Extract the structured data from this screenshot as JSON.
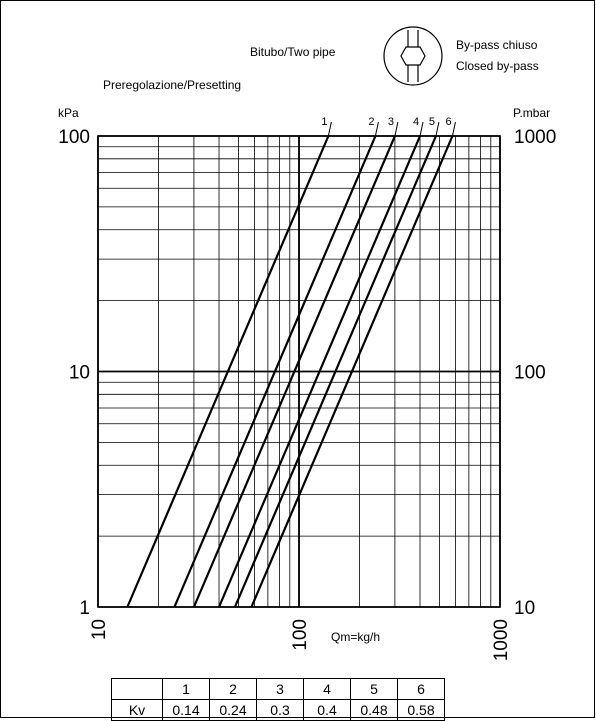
{
  "header": {
    "two_pipe": "Bitubo/Two pipe",
    "bypass_it": "By-pass chiuso",
    "bypass_en": "Closed by-pass",
    "presetting": "Preregolazione/Presetting"
  },
  "chart_data": {
    "type": "line",
    "x_scale": "log",
    "y_scale": "log",
    "xlim": [
      10,
      1000
    ],
    "ylim": [
      1,
      100
    ],
    "xlabel": "Qm=kg/h",
    "ylabel_left": "kPa",
    "ylabel_right": "P.mbar",
    "x_ticks": [
      "10",
      "100",
      "1000"
    ],
    "y_ticks_left": [
      "1",
      "10",
      "100"
    ],
    "y_ticks_right": [
      "10",
      "100",
      "1000"
    ],
    "grid": true,
    "series": [
      {
        "name": "1",
        "x": [
          14,
          140
        ],
        "y": [
          1,
          100
        ]
      },
      {
        "name": "2",
        "x": [
          24,
          240
        ],
        "y": [
          1,
          100
        ]
      },
      {
        "name": "3",
        "x": [
          30,
          300
        ],
        "y": [
          1,
          100
        ]
      },
      {
        "name": "4",
        "x": [
          40,
          400
        ],
        "y": [
          1,
          100
        ]
      },
      {
        "name": "5",
        "x": [
          48,
          480
        ],
        "y": [
          1,
          100
        ]
      },
      {
        "name": "6",
        "x": [
          58,
          580
        ],
        "y": [
          1,
          100
        ]
      }
    ]
  },
  "kv_table": {
    "row_label": "Kv",
    "headers": [
      "1",
      "2",
      "3",
      "4",
      "5",
      "6"
    ],
    "values": [
      "0.14",
      "0.24",
      "0.3",
      "0.4",
      "0.48",
      "0.58"
    ]
  }
}
